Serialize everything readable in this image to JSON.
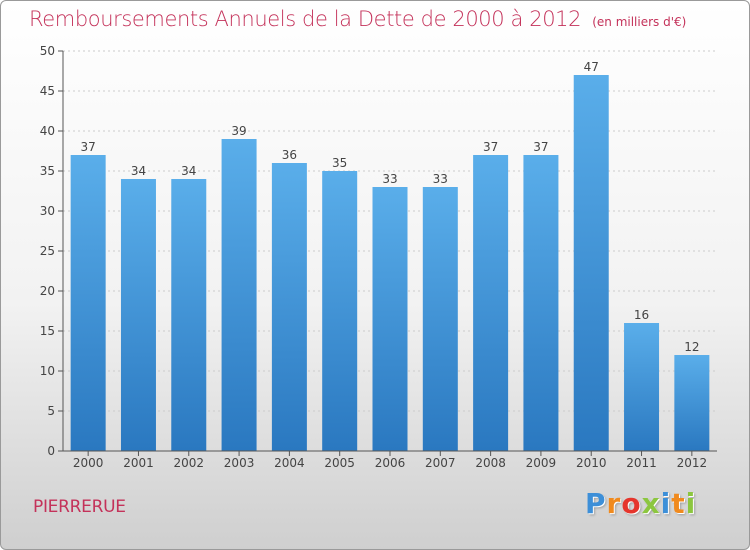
{
  "title": "Remboursements Annuels de la Dette de 2000 à 2012",
  "unit_note": "(en milliers d'€)",
  "commune": "PIERRERUE",
  "logo": {
    "letters": [
      {
        "char": "P",
        "color": "#3d8fd8"
      },
      {
        "char": "r",
        "color": "#f08a1e"
      },
      {
        "char": "o",
        "color": "#e5352c"
      },
      {
        "char": "x",
        "color": "#8cc63f"
      },
      {
        "char": "i",
        "color": "#3d8fd8"
      },
      {
        "char": "t",
        "color": "#f08a1e"
      },
      {
        "char": "i",
        "color": "#8cc63f"
      }
    ]
  },
  "colors": {
    "title": "#c4325a",
    "bar_top": "#5aaeea",
    "bar_bottom": "#2a78c0",
    "axis": "#555555",
    "grid": "#cccccc"
  },
  "chart_data": {
    "type": "bar",
    "title": "Remboursements Annuels de la Dette de 2000 à 2012",
    "xlabel": "",
    "ylabel": "",
    "categories": [
      "2000",
      "2001",
      "2002",
      "2003",
      "2004",
      "2005",
      "2006",
      "2007",
      "2008",
      "2009",
      "2010",
      "2011",
      "2012"
    ],
    "values": [
      37,
      34,
      34,
      39,
      36,
      35,
      33,
      33,
      37,
      37,
      47,
      16,
      12
    ],
    "ylim": [
      0,
      50
    ],
    "yticks": [
      0,
      5,
      10,
      15,
      20,
      25,
      30,
      35,
      40,
      45,
      50
    ],
    "grid": true
  }
}
